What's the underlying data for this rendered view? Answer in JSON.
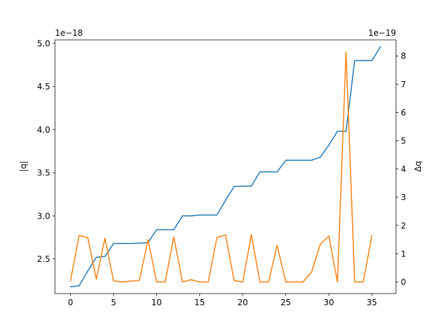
{
  "chart_data": {
    "type": "line",
    "title": "",
    "xlabel": "",
    "xlim": [
      -1.8,
      37.8
    ],
    "xticks": [
      0,
      5,
      10,
      15,
      20,
      25,
      30,
      35
    ],
    "grid": false,
    "legend": "none",
    "left_axis": {
      "label": "|q|",
      "offset_text": "1e−18",
      "scale": 1e-18,
      "ylim": [
        2.1,
        5.04
      ],
      "ticks": [
        2.5,
        3.0,
        3.5,
        4.0,
        4.5,
        5.0
      ],
      "tick_labels": [
        "2.5",
        "3.0",
        "3.5",
        "4.0",
        "4.5",
        "5.0"
      ]
    },
    "right_axis": {
      "label": "Δq",
      "offset_text": "1e−19",
      "scale": 1e-19,
      "ylim": [
        -0.41,
        8.57
      ],
      "ticks": [
        0,
        1,
        2,
        3,
        4,
        5,
        6,
        7,
        8
      ],
      "tick_labels": [
        "0",
        "1",
        "2",
        "3",
        "4",
        "5",
        "6",
        "7",
        "8"
      ]
    },
    "series": [
      {
        "axis": "left",
        "color": "#1f77b4",
        "x": [
          0,
          1,
          2,
          3,
          4,
          5,
          6,
          7,
          8,
          9,
          10,
          11,
          12,
          13,
          14,
          15,
          16,
          17,
          18,
          19,
          20,
          21,
          22,
          23,
          24,
          25,
          26,
          27,
          28,
          29,
          30,
          31,
          32,
          33,
          34,
          35,
          36
        ],
        "values": [
          2.18,
          2.19,
          2.36,
          2.52,
          2.53,
          2.68,
          2.68,
          2.68,
          2.685,
          2.69,
          2.84,
          2.84,
          2.84,
          3.0,
          3.0,
          3.01,
          3.01,
          3.01,
          3.18,
          3.34,
          3.345,
          3.345,
          3.51,
          3.51,
          3.51,
          3.645,
          3.645,
          3.645,
          3.645,
          3.68,
          3.82,
          3.98,
          3.98,
          4.8,
          4.8,
          4.8,
          4.96
        ]
      },
      {
        "axis": "right",
        "color": "#ff7f0e",
        "x": [
          0,
          1,
          2,
          3,
          4,
          5,
          6,
          7,
          8,
          9,
          10,
          11,
          12,
          13,
          14,
          15,
          16,
          17,
          18,
          19,
          20,
          21,
          22,
          23,
          24,
          25,
          26,
          27,
          28,
          29,
          30,
          31,
          32,
          33,
          34,
          35
        ],
        "values": [
          0.05,
          1.65,
          1.57,
          0.1,
          1.55,
          0.04,
          0.0,
          0.03,
          0.05,
          1.5,
          0.0,
          0.0,
          1.6,
          0.0,
          0.08,
          0.0,
          0.0,
          1.57,
          1.67,
          0.05,
          0.0,
          1.68,
          0.0,
          0.0,
          1.3,
          0.0,
          0.0,
          0.0,
          0.35,
          1.33,
          1.63,
          0.0,
          8.15,
          0.0,
          0.0,
          1.65
        ]
      }
    ]
  }
}
